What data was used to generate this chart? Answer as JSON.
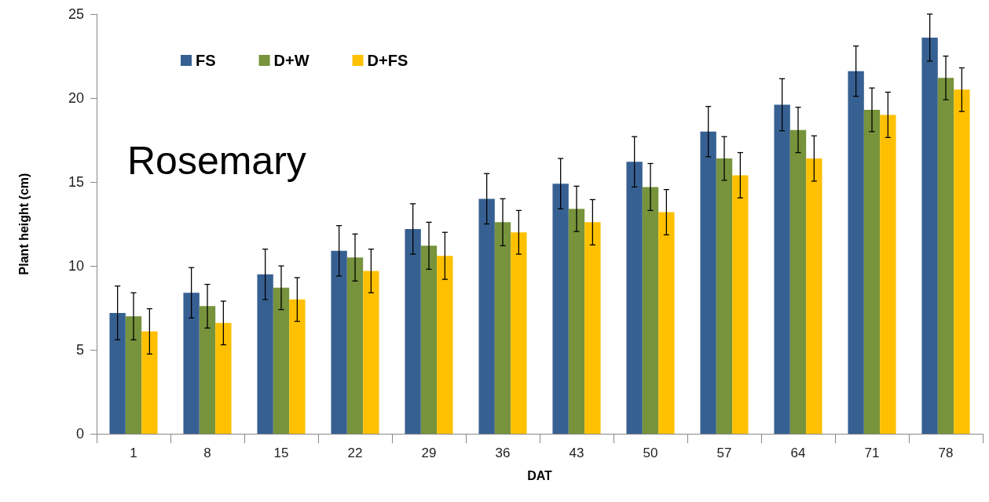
{
  "chart_data": {
    "type": "bar",
    "xlabel": "DAT",
    "ylabel": "Plant height (cm)",
    "annotations": [
      "Rosemary"
    ],
    "categories": [
      "1",
      "8",
      "15",
      "22",
      "29",
      "36",
      "43",
      "50",
      "57",
      "64",
      "71",
      "78"
    ],
    "series": [
      {
        "name": "FS",
        "color": "#376092",
        "values": [
          7.2,
          8.4,
          9.5,
          10.9,
          12.2,
          14.0,
          14.9,
          16.2,
          18.0,
          19.6,
          21.6,
          23.6
        ],
        "errors": [
          1.6,
          1.5,
          1.5,
          1.5,
          1.5,
          1.5,
          1.5,
          1.5,
          1.5,
          1.55,
          1.5,
          1.4
        ]
      },
      {
        "name": "D+W",
        "color": "#77933c",
        "values": [
          7.0,
          7.6,
          8.7,
          10.5,
          11.2,
          12.6,
          13.4,
          14.7,
          16.4,
          18.1,
          19.3,
          21.2
        ],
        "errors": [
          1.4,
          1.3,
          1.3,
          1.4,
          1.4,
          1.4,
          1.35,
          1.4,
          1.3,
          1.35,
          1.3,
          1.3
        ]
      },
      {
        "name": "D+FS",
        "color": "#ffc000",
        "values": [
          6.1,
          6.6,
          8.0,
          9.7,
          10.6,
          12.0,
          12.6,
          13.2,
          15.4,
          16.4,
          19.0,
          20.5
        ],
        "errors": [
          1.35,
          1.3,
          1.3,
          1.3,
          1.4,
          1.3,
          1.35,
          1.35,
          1.35,
          1.35,
          1.35,
          1.3
        ]
      }
    ],
    "ylim": [
      0,
      25
    ],
    "yticks": [
      0,
      5,
      10,
      15,
      20,
      25
    ],
    "grid": false,
    "legend": "top left"
  }
}
